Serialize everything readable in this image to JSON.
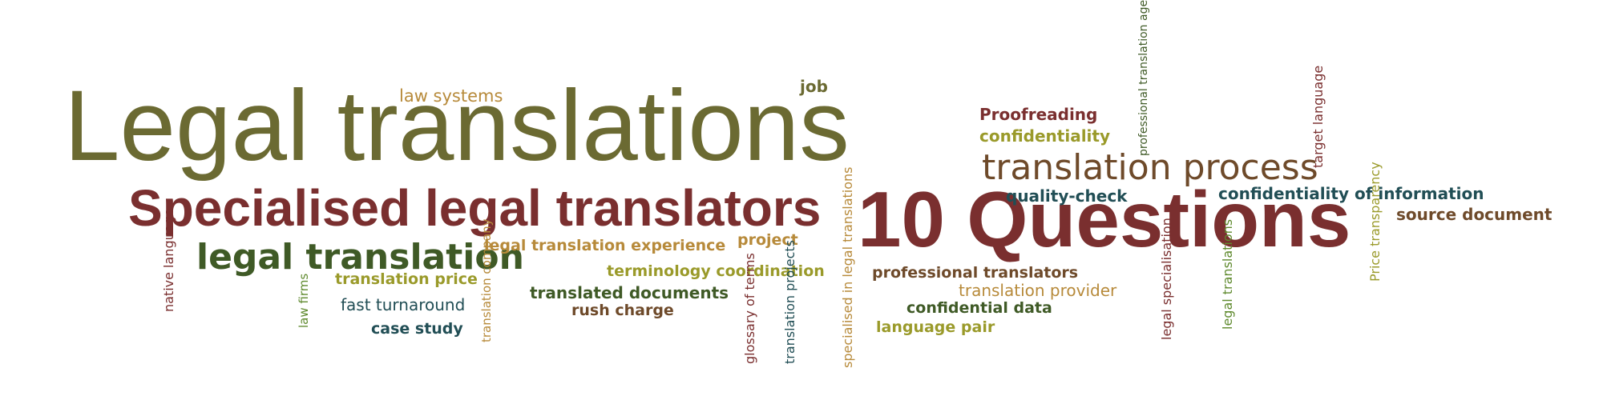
{
  "palette": {
    "olive": "#6b6a32",
    "maroon": "#7a2f2f",
    "dark_green": "#3f5a26",
    "teal": "#214e55",
    "tan": "#b78a3a",
    "olive_gold": "#9a9a2a",
    "brown": "#6e4a2a",
    "green": "#5f8a2e"
  },
  "cloud": {
    "legal_translations": "Legal translations",
    "specialised_legal_translators": "Specialised legal translators",
    "ten_questions": "10 Questions",
    "legal_translation": "legal translation",
    "translation_process": "translation process",
    "law_systems": "law systems",
    "job": "job",
    "proofreading": "Proofreading",
    "confidentiality": "confidentiality",
    "quality_check": "quality-check",
    "confidentiality_of_information": "confidentiality of information",
    "source_document": "source document",
    "legal_translation_experience": "legal translation experience",
    "project": "project",
    "terminology_coordination": "terminology coordination",
    "translation_price": "translation price",
    "translated_documents": "translated documents",
    "rush_charge": "rush charge",
    "fast_turnaround": "fast turnaround",
    "case_study": "case study",
    "professional_translators": "professional translators",
    "translation_provider": "translation provider",
    "confidential_data": "confidential data",
    "language_pair": "language pair",
    "native_language": "native language",
    "law_firms": "law firms",
    "translation_company": "translation company",
    "glossary_of_terms": "glossary of terms",
    "translation_projects": "translation projects",
    "specialised_in_legal_translations": "specialised in legal translations",
    "professional_translation_agency": "professional translation agency",
    "target_language": "target language",
    "price_transparency": "Price transparency",
    "legal_specialisation": "legal specialisation",
    "legal_translations_small": "legal translations"
  }
}
